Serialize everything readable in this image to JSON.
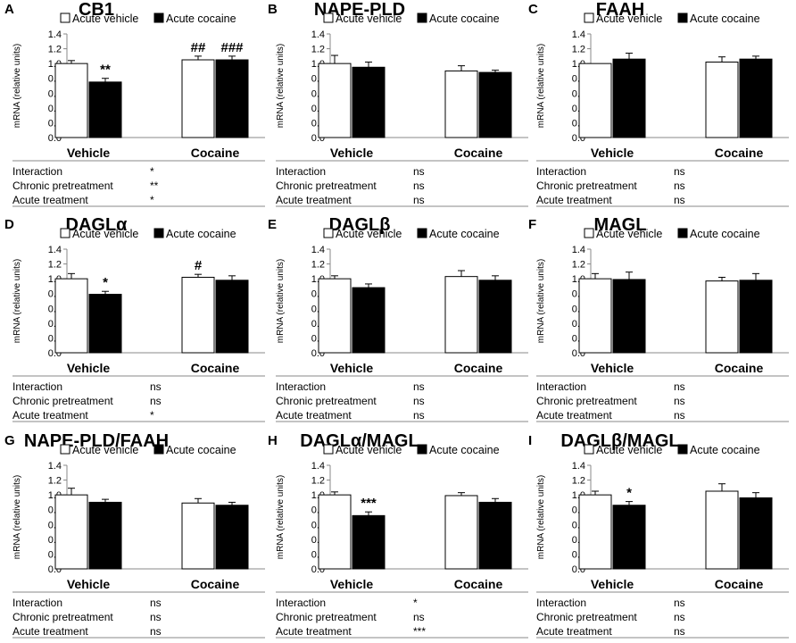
{
  "figure": {
    "legend_vehicle": "Acute vehicle",
    "legend_cocaine": "Acute cocaine",
    "stats_labels": [
      "Interaction",
      "Chronic pretreatment",
      "Acute treatment"
    ],
    "colors": {
      "vehicle_fill": "#ffffff",
      "cocaine_fill": "#000000",
      "axis": "#888888"
    }
  },
  "chart_data": [
    {
      "panel": "A",
      "title": "CB1",
      "type": "bar",
      "categories": [
        "Vehicle",
        "Cocaine"
      ],
      "ylabel": "mRNA (relative units)",
      "ylim": [
        0,
        1.4
      ],
      "yticks": [
        "0.0",
        "0.2",
        "0.4",
        "0.6",
        "0.8",
        "1.0",
        "1.2",
        "1.4"
      ],
      "series": [
        {
          "name": "Acute vehicle",
          "values": [
            1.0,
            1.05
          ],
          "errors": [
            0.04,
            0.05
          ],
          "marks": [
            "",
            "##"
          ]
        },
        {
          "name": "Acute cocaine",
          "values": [
            0.75,
            1.05
          ],
          "errors": [
            0.05,
            0.05
          ],
          "marks": [
            "**",
            "###"
          ]
        }
      ],
      "stats": [
        "*",
        "**",
        "*"
      ]
    },
    {
      "panel": "B",
      "title": "NAPE-PLD",
      "type": "bar",
      "categories": [
        "Vehicle",
        "Cocaine"
      ],
      "ylabel": "mRNA (relative units)",
      "ylim": [
        0,
        1.4
      ],
      "yticks": [
        "0.0",
        "0.2",
        "0.4",
        "0.6",
        "0.8",
        "1.0",
        "1.2",
        "1.4"
      ],
      "series": [
        {
          "name": "Acute vehicle",
          "values": [
            1.0,
            0.9
          ],
          "errors": [
            0.11,
            0.07
          ],
          "marks": [
            "",
            ""
          ]
        },
        {
          "name": "Acute cocaine",
          "values": [
            0.95,
            0.88
          ],
          "errors": [
            0.07,
            0.03
          ],
          "marks": [
            "",
            ""
          ]
        }
      ],
      "stats": [
        "ns",
        "ns",
        "ns"
      ]
    },
    {
      "panel": "C",
      "title": "FAAH",
      "type": "bar",
      "categories": [
        "Vehicle",
        "Cocaine"
      ],
      "ylabel": "mRNA (relative units)",
      "ylim": [
        0,
        1.4
      ],
      "yticks": [
        "0.0",
        "0.2",
        "0.4",
        "0.6",
        "0.8",
        "1.0",
        "1.2",
        "1.4"
      ],
      "series": [
        {
          "name": "Acute vehicle",
          "values": [
            1.0,
            1.02
          ],
          "errors": [
            0.0,
            0.07
          ],
          "marks": [
            "",
            ""
          ]
        },
        {
          "name": "Acute cocaine",
          "values": [
            1.06,
            1.06
          ],
          "errors": [
            0.08,
            0.04
          ],
          "marks": [
            "",
            ""
          ]
        }
      ],
      "stats": [
        "ns",
        "ns",
        "ns"
      ]
    },
    {
      "panel": "D",
      "title": "DAGLα",
      "type": "bar",
      "categories": [
        "Vehicle",
        "Cocaine"
      ],
      "ylabel": "mRNA (relative units)",
      "ylim": [
        0,
        1.4
      ],
      "yticks": [
        "0.0",
        "0.2",
        "0.4",
        "0.6",
        "0.8",
        "1.0",
        "1.2",
        "1.4"
      ],
      "series": [
        {
          "name": "Acute vehicle",
          "values": [
            1.0,
            1.02
          ],
          "errors": [
            0.07,
            0.04
          ],
          "marks": [
            "",
            "#"
          ]
        },
        {
          "name": "Acute cocaine",
          "values": [
            0.79,
            0.98
          ],
          "errors": [
            0.04,
            0.06
          ],
          "marks": [
            "*",
            ""
          ]
        }
      ],
      "stats": [
        "ns",
        "ns",
        "*"
      ]
    },
    {
      "panel": "E",
      "title": "DAGLβ",
      "type": "bar",
      "categories": [
        "Vehicle",
        "Cocaine"
      ],
      "ylabel": "mRNA (relative units)",
      "ylim": [
        0,
        1.4
      ],
      "yticks": [
        "0.0",
        "0.2",
        "0.4",
        "0.6",
        "0.8",
        "1.0",
        "1.2",
        "1.4"
      ],
      "series": [
        {
          "name": "Acute vehicle",
          "values": [
            1.0,
            1.03
          ],
          "errors": [
            0.04,
            0.08
          ],
          "marks": [
            "",
            ""
          ]
        },
        {
          "name": "Acute cocaine",
          "values": [
            0.88,
            0.98
          ],
          "errors": [
            0.05,
            0.06
          ],
          "marks": [
            "",
            ""
          ]
        }
      ],
      "stats": [
        "ns",
        "ns",
        "ns"
      ]
    },
    {
      "panel": "F",
      "title": "MAGL",
      "type": "bar",
      "categories": [
        "Vehicle",
        "Cocaine"
      ],
      "ylabel": "mRNA (relative units)",
      "ylim": [
        0,
        1.4
      ],
      "yticks": [
        "0.0",
        "0.2",
        "0.4",
        "0.6",
        "0.8",
        "1.0",
        "1.2",
        "1.4"
      ],
      "series": [
        {
          "name": "Acute vehicle",
          "values": [
            1.0,
            0.97
          ],
          "errors": [
            0.07,
            0.05
          ],
          "marks": [
            "",
            ""
          ]
        },
        {
          "name": "Acute cocaine",
          "values": [
            0.99,
            0.98
          ],
          "errors": [
            0.1,
            0.09
          ],
          "marks": [
            "",
            ""
          ]
        }
      ],
      "stats": [
        "ns",
        "ns",
        "ns"
      ]
    },
    {
      "panel": "G",
      "title": "NAPE-PLD/FAAH",
      "type": "bar",
      "categories": [
        "Vehicle",
        "Cocaine"
      ],
      "ylabel": "mRNA (relative units)",
      "ylim": [
        0,
        1.4
      ],
      "yticks": [
        "0.0",
        "0.2",
        "0.4",
        "0.6",
        "0.8",
        "1.0",
        "1.2",
        "1.4"
      ],
      "series": [
        {
          "name": "Acute vehicle",
          "values": [
            1.0,
            0.89
          ],
          "errors": [
            0.09,
            0.06
          ],
          "marks": [
            "",
            ""
          ]
        },
        {
          "name": "Acute cocaine",
          "values": [
            0.9,
            0.86
          ],
          "errors": [
            0.04,
            0.04
          ],
          "marks": [
            "",
            ""
          ]
        }
      ],
      "stats": [
        "ns",
        "ns",
        "ns"
      ]
    },
    {
      "panel": "H",
      "title": "DAGLα/MAGL",
      "type": "bar",
      "categories": [
        "Vehicle",
        "Cocaine"
      ],
      "ylabel": "mRNA (relative units)",
      "ylim": [
        0,
        1.4
      ],
      "yticks": [
        "0.0",
        "0.2",
        "0.4",
        "0.6",
        "0.8",
        "1.0",
        "1.2",
        "1.4"
      ],
      "series": [
        {
          "name": "Acute vehicle",
          "values": [
            1.0,
            0.99
          ],
          "errors": [
            0.04,
            0.04
          ],
          "marks": [
            "",
            ""
          ]
        },
        {
          "name": "Acute cocaine",
          "values": [
            0.72,
            0.9
          ],
          "errors": [
            0.05,
            0.05
          ],
          "marks": [
            "***",
            ""
          ]
        }
      ],
      "stats": [
        "*",
        "ns",
        "***"
      ]
    },
    {
      "panel": "I",
      "title": "DAGLβ/MAGL",
      "type": "bar",
      "categories": [
        "Vehicle",
        "Cocaine"
      ],
      "ylabel": "mRNA (relative units)",
      "ylim": [
        0,
        1.4
      ],
      "yticks": [
        "0.0",
        "0.2",
        "0.4",
        "0.6",
        "0.8",
        "1.0",
        "1.2",
        "1.4"
      ],
      "series": [
        {
          "name": "Acute vehicle",
          "values": [
            1.0,
            1.05
          ],
          "errors": [
            0.05,
            0.1
          ],
          "marks": [
            "",
            ""
          ]
        },
        {
          "name": "Acute cocaine",
          "values": [
            0.86,
            0.96
          ],
          "errors": [
            0.05,
            0.07
          ],
          "marks": [
            "*",
            ""
          ]
        }
      ],
      "stats": [
        "ns",
        "ns",
        "ns"
      ]
    }
  ]
}
